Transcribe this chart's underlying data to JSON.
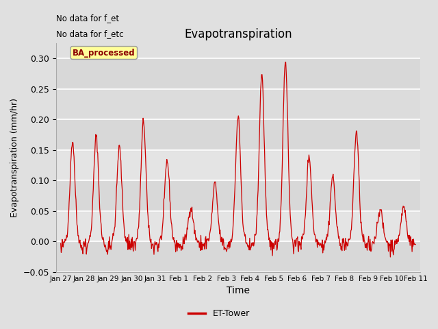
{
  "title": "Evapotranspiration",
  "ylabel": "Evapotranspiration (mm/hr)",
  "xlabel": "Time",
  "ylim": [
    -0.05,
    0.325
  ],
  "note1": "No data for f_et",
  "note2": "No data for f_etc",
  "legend_label": "ET-Tower",
  "box_label": "BA_processed",
  "xtick_labels": [
    "Jan 27",
    "Jan 28",
    "Jan 29",
    "Jan 30",
    "Jan 31",
    "Feb 1",
    "Feb 2",
    "Feb 3",
    "Feb 4",
    "Feb 5",
    "Feb 6",
    "Feb 7",
    "Feb 8",
    "Feb 9",
    "Feb 10",
    "Feb 11"
  ],
  "ytick_vals": [
    -0.05,
    0.0,
    0.05,
    0.1,
    0.15,
    0.2,
    0.25,
    0.3
  ],
  "line_color": "#cc0000",
  "bg_color": "#e0e0e0",
  "band_color": "#d8d8d8",
  "alt_band_color": "#e8e8e8",
  "grid_color": "#ffffff",
  "seed": 42,
  "n_days": 15,
  "n_per_day": 48
}
